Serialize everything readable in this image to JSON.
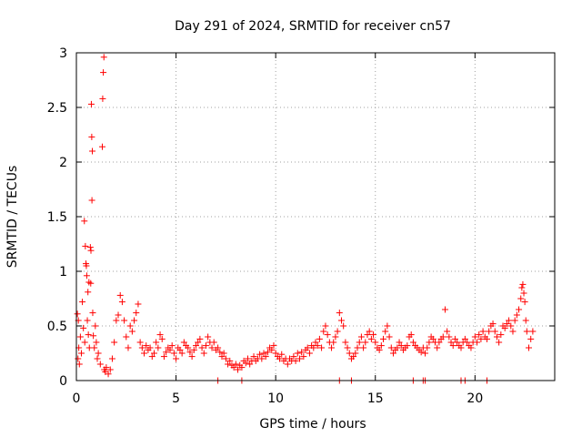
{
  "chart_data": {
    "type": "scatter",
    "title": "Day 291 of 2024, SRMTID for receiver cn57",
    "xlabel": "GPS time / hours",
    "ylabel": "SRMTID / TECUs",
    "xlim": [
      0,
      24
    ],
    "ylim": [
      0,
      3
    ],
    "xticks": [
      0,
      5,
      10,
      15,
      20
    ],
    "yticks": [
      0,
      0.5,
      1,
      1.5,
      2,
      2.5,
      3
    ],
    "ytick_labels": [
      "0",
      "0.5",
      "1",
      "1.5",
      "2",
      "2.5",
      "3"
    ],
    "grid": true,
    "marker": "+",
    "color": "#ff0000",
    "series": [
      {
        "name": "SRMTID",
        "points": [
          [
            0.05,
            0.61
          ],
          [
            0.08,
            0.2
          ],
          [
            0.1,
            0.55
          ],
          [
            0.12,
            0.3
          ],
          [
            0.15,
            0.15
          ],
          [
            0.2,
            0.4
          ],
          [
            0.25,
            0.25
          ],
          [
            0.3,
            0.72
          ],
          [
            0.35,
            0.48
          ],
          [
            0.4,
            1.46
          ],
          [
            0.42,
            0.35
          ],
          [
            0.45,
            1.23
          ],
          [
            0.48,
            1.07
          ],
          [
            0.5,
            1.05
          ],
          [
            0.52,
            0.96
          ],
          [
            0.55,
            0.55
          ],
          [
            0.58,
            0.81
          ],
          [
            0.6,
            0.42
          ],
          [
            0.63,
            0.9
          ],
          [
            0.65,
            0.3
          ],
          [
            0.7,
            1.22
          ],
          [
            0.72,
            0.89
          ],
          [
            0.73,
            1.19
          ],
          [
            0.75,
            2.53
          ],
          [
            0.77,
            2.23
          ],
          [
            0.8,
            2.1
          ],
          [
            0.78,
            1.65
          ],
          [
            0.82,
            0.62
          ],
          [
            0.85,
            0.41
          ],
          [
            0.9,
            0.3
          ],
          [
            0.95,
            0.5
          ],
          [
            1.0,
            0.35
          ],
          [
            1.05,
            0.2
          ],
          [
            1.1,
            0.25
          ],
          [
            1.2,
            0.15
          ],
          [
            1.3,
            2.14
          ],
          [
            1.32,
            2.58
          ],
          [
            1.35,
            2.82
          ],
          [
            1.38,
            2.96
          ],
          [
            1.4,
            0.1
          ],
          [
            1.45,
            0.08
          ],
          [
            1.5,
            0.12
          ],
          [
            1.6,
            0.06
          ],
          [
            1.7,
            0.1
          ],
          [
            1.8,
            0.2
          ],
          [
            1.9,
            0.35
          ],
          [
            2.0,
            0.55
          ],
          [
            2.1,
            0.6
          ],
          [
            2.2,
            0.78
          ],
          [
            2.3,
            0.72
          ],
          [
            2.4,
            0.55
          ],
          [
            2.5,
            0.4
          ],
          [
            2.6,
            0.3
          ],
          [
            2.7,
            0.5
          ],
          [
            2.8,
            0.45
          ],
          [
            2.9,
            0.55
          ],
          [
            3.0,
            0.62
          ],
          [
            3.1,
            0.7
          ],
          [
            3.2,
            0.35
          ],
          [
            3.3,
            0.3
          ],
          [
            3.4,
            0.25
          ],
          [
            3.5,
            0.32
          ],
          [
            3.6,
            0.28
          ],
          [
            3.7,
            0.3
          ],
          [
            3.8,
            0.22
          ],
          [
            3.9,
            0.25
          ],
          [
            4.0,
            0.35
          ],
          [
            4.1,
            0.3
          ],
          [
            4.2,
            0.42
          ],
          [
            4.3,
            0.38
          ],
          [
            4.4,
            0.22
          ],
          [
            4.5,
            0.26
          ],
          [
            4.6,
            0.3
          ],
          [
            4.7,
            0.28
          ],
          [
            4.8,
            0.32
          ],
          [
            4.9,
            0.25
          ],
          [
            5.0,
            0.2
          ],
          [
            5.1,
            0.3
          ],
          [
            5.2,
            0.28
          ],
          [
            5.3,
            0.25
          ],
          [
            5.4,
            0.35
          ],
          [
            5.5,
            0.32
          ],
          [
            5.6,
            0.3
          ],
          [
            5.7,
            0.26
          ],
          [
            5.8,
            0.22
          ],
          [
            5.9,
            0.28
          ],
          [
            6.0,
            0.32
          ],
          [
            6.1,
            0.35
          ],
          [
            6.2,
            0.38
          ],
          [
            6.3,
            0.3
          ],
          [
            6.4,
            0.25
          ],
          [
            6.5,
            0.32
          ],
          [
            6.6,
            0.4
          ],
          [
            6.7,
            0.35
          ],
          [
            6.8,
            0.3
          ],
          [
            6.9,
            0.35
          ],
          [
            7.0,
            0.28
          ],
          [
            7.1,
            0.3
          ],
          [
            7.2,
            0.26
          ],
          [
            7.3,
            0.22
          ],
          [
            7.4,
            0.25
          ],
          [
            7.5,
            0.2
          ],
          [
            7.6,
            0.15
          ],
          [
            7.7,
            0.18
          ],
          [
            7.8,
            0.14
          ],
          [
            7.9,
            0.12
          ],
          [
            8.0,
            0.15
          ],
          [
            8.1,
            0.1
          ],
          [
            8.2,
            0.14
          ],
          [
            8.3,
            0.12
          ],
          [
            8.4,
            0.18
          ],
          [
            8.5,
            0.16
          ],
          [
            8.6,
            0.2
          ],
          [
            8.7,
            0.15
          ],
          [
            8.8,
            0.18
          ],
          [
            8.9,
            0.22
          ],
          [
            9.0,
            0.18
          ],
          [
            9.1,
            0.2
          ],
          [
            9.2,
            0.24
          ],
          [
            9.3,
            0.2
          ],
          [
            9.4,
            0.25
          ],
          [
            9.5,
            0.22
          ],
          [
            9.6,
            0.26
          ],
          [
            9.7,
            0.3
          ],
          [
            9.8,
            0.28
          ],
          [
            9.9,
            0.32
          ],
          [
            10.0,
            0.25
          ],
          [
            10.1,
            0.22
          ],
          [
            10.2,
            0.2
          ],
          [
            10.3,
            0.24
          ],
          [
            10.4,
            0.18
          ],
          [
            10.5,
            0.2
          ],
          [
            10.6,
            0.15
          ],
          [
            10.7,
            0.2
          ],
          [
            10.8,
            0.18
          ],
          [
            10.9,
            0.22
          ],
          [
            11.0,
            0.18
          ],
          [
            11.1,
            0.25
          ],
          [
            11.2,
            0.2
          ],
          [
            11.3,
            0.26
          ],
          [
            11.4,
            0.22
          ],
          [
            11.5,
            0.28
          ],
          [
            11.6,
            0.3
          ],
          [
            11.7,
            0.25
          ],
          [
            11.8,
            0.32
          ],
          [
            11.9,
            0.3
          ],
          [
            12.0,
            0.35
          ],
          [
            12.1,
            0.32
          ],
          [
            12.2,
            0.38
          ],
          [
            12.3,
            0.3
          ],
          [
            12.4,
            0.45
          ],
          [
            12.5,
            0.5
          ],
          [
            12.6,
            0.42
          ],
          [
            12.7,
            0.35
          ],
          [
            12.8,
            0.3
          ],
          [
            12.9,
            0.35
          ],
          [
            13.0,
            0.4
          ],
          [
            13.1,
            0.45
          ],
          [
            13.2,
            0.62
          ],
          [
            13.3,
            0.55
          ],
          [
            13.4,
            0.5
          ],
          [
            13.5,
            0.35
          ],
          [
            13.6,
            0.3
          ],
          [
            13.7,
            0.25
          ],
          [
            13.8,
            0.2
          ],
          [
            13.9,
            0.22
          ],
          [
            14.0,
            0.25
          ],
          [
            14.1,
            0.3
          ],
          [
            14.2,
            0.35
          ],
          [
            14.3,
            0.4
          ],
          [
            14.4,
            0.3
          ],
          [
            14.5,
            0.35
          ],
          [
            14.6,
            0.42
          ],
          [
            14.7,
            0.45
          ],
          [
            14.8,
            0.38
          ],
          [
            14.9,
            0.42
          ],
          [
            15.0,
            0.35
          ],
          [
            15.1,
            0.3
          ],
          [
            15.2,
            0.28
          ],
          [
            15.3,
            0.32
          ],
          [
            15.4,
            0.38
          ],
          [
            15.5,
            0.45
          ],
          [
            15.6,
            0.5
          ],
          [
            15.7,
            0.4
          ],
          [
            15.8,
            0.3
          ],
          [
            15.9,
            0.25
          ],
          [
            16.0,
            0.28
          ],
          [
            16.1,
            0.3
          ],
          [
            16.2,
            0.35
          ],
          [
            16.3,
            0.32
          ],
          [
            16.4,
            0.28
          ],
          [
            16.5,
            0.3
          ],
          [
            16.6,
            0.32
          ],
          [
            16.7,
            0.4
          ],
          [
            16.8,
            0.42
          ],
          [
            16.9,
            0.35
          ],
          [
            17.0,
            0.32
          ],
          [
            17.1,
            0.3
          ],
          [
            17.2,
            0.28
          ],
          [
            17.3,
            0.26
          ],
          [
            17.4,
            0.3
          ],
          [
            17.5,
            0.25
          ],
          [
            17.6,
            0.3
          ],
          [
            17.7,
            0.35
          ],
          [
            17.8,
            0.4
          ],
          [
            17.9,
            0.38
          ],
          [
            18.0,
            0.35
          ],
          [
            18.1,
            0.3
          ],
          [
            18.2,
            0.35
          ],
          [
            18.3,
            0.38
          ],
          [
            18.4,
            0.4
          ],
          [
            18.5,
            0.65
          ],
          [
            18.6,
            0.45
          ],
          [
            18.7,
            0.4
          ],
          [
            18.8,
            0.35
          ],
          [
            18.9,
            0.32
          ],
          [
            19.0,
            0.38
          ],
          [
            19.1,
            0.35
          ],
          [
            19.2,
            0.32
          ],
          [
            19.3,
            0.3
          ],
          [
            19.4,
            0.35
          ],
          [
            19.5,
            0.38
          ],
          [
            19.6,
            0.35
          ],
          [
            19.7,
            0.32
          ],
          [
            19.8,
            0.3
          ],
          [
            19.9,
            0.35
          ],
          [
            20.0,
            0.4
          ],
          [
            20.1,
            0.35
          ],
          [
            20.2,
            0.42
          ],
          [
            20.3,
            0.38
          ],
          [
            20.4,
            0.45
          ],
          [
            20.5,
            0.4
          ],
          [
            20.6,
            0.38
          ],
          [
            20.7,
            0.45
          ],
          [
            20.8,
            0.5
          ],
          [
            20.9,
            0.52
          ],
          [
            21.0,
            0.45
          ],
          [
            21.1,
            0.4
          ],
          [
            21.2,
            0.35
          ],
          [
            21.3,
            0.42
          ],
          [
            21.4,
            0.5
          ],
          [
            21.5,
            0.48
          ],
          [
            21.6,
            0.52
          ],
          [
            21.7,
            0.55
          ],
          [
            21.8,
            0.5
          ],
          [
            21.9,
            0.45
          ],
          [
            22.0,
            0.55
          ],
          [
            22.1,
            0.6
          ],
          [
            22.2,
            0.65
          ],
          [
            22.3,
            0.75
          ],
          [
            22.35,
            0.85
          ],
          [
            22.4,
            0.88
          ],
          [
            22.45,
            0.8
          ],
          [
            22.5,
            0.72
          ],
          [
            22.55,
            0.55
          ],
          [
            22.6,
            0.45
          ],
          [
            22.7,
            0.3
          ],
          [
            22.8,
            0.38
          ],
          [
            22.9,
            0.45
          ]
        ],
        "near_zero_points": [
          [
            7.1,
            0.0
          ],
          [
            8.3,
            0.0
          ],
          [
            13.2,
            0.0
          ],
          [
            13.8,
            0.0
          ],
          [
            16.9,
            0.0
          ],
          [
            17.4,
            0.0
          ],
          [
            17.5,
            0.0
          ],
          [
            19.3,
            0.0
          ],
          [
            19.5,
            0.0
          ],
          [
            20.6,
            0.0
          ]
        ]
      }
    ]
  }
}
